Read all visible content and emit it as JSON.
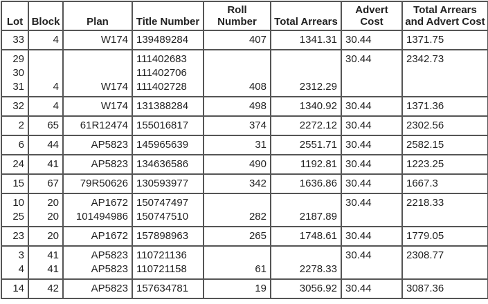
{
  "table": {
    "header": [
      "Lot",
      "Block",
      "Plan",
      "Title Number",
      "Roll Number",
      "Total Arrears",
      "Advert Cost",
      "Total Arrears and Advert Cost"
    ],
    "rows": [
      [
        [
          "33"
        ],
        [
          "4"
        ],
        [
          "W174"
        ],
        [
          "139489284"
        ],
        [
          "407"
        ],
        [
          "1341.31"
        ],
        [
          "30.44"
        ],
        [
          "1371.75"
        ]
      ],
      [
        [
          "29",
          "30",
          "31"
        ],
        [
          "4"
        ],
        [
          "W174"
        ],
        [
          "111402683",
          "111402706",
          "111402728"
        ],
        [
          "408"
        ],
        [
          "2312.29"
        ],
        [
          "30.44"
        ],
        [
          "2342.73"
        ]
      ],
      [
        [
          "32"
        ],
        [
          "4"
        ],
        [
          "W174"
        ],
        [
          "131388284"
        ],
        [
          "498"
        ],
        [
          "1340.92"
        ],
        [
          "30.44"
        ],
        [
          "1371.36"
        ]
      ],
      [
        [
          "2"
        ],
        [
          "65"
        ],
        [
          "61R12474"
        ],
        [
          "155016817"
        ],
        [
          "374"
        ],
        [
          "2272.12"
        ],
        [
          "30.44"
        ],
        [
          "2302.56"
        ]
      ],
      [
        [
          "6"
        ],
        [
          "44"
        ],
        [
          "AP5823"
        ],
        [
          "145965639"
        ],
        [
          "31"
        ],
        [
          "2551.71"
        ],
        [
          "30.44"
        ],
        [
          "2582.15"
        ]
      ],
      [
        [
          "24"
        ],
        [
          "41"
        ],
        [
          "AP5823"
        ],
        [
          "134636586"
        ],
        [
          "490"
        ],
        [
          "1192.81"
        ],
        [
          "30.44"
        ],
        [
          "1223.25"
        ]
      ],
      [
        [
          "15"
        ],
        [
          "67"
        ],
        [
          "79R50626"
        ],
        [
          "130593977"
        ],
        [
          "342"
        ],
        [
          "1636.86"
        ],
        [
          "30.44"
        ],
        [
          "1667.3"
        ]
      ],
      [
        [
          "10",
          "25"
        ],
        [
          "20",
          "20"
        ],
        [
          "AP1672",
          "101494986"
        ],
        [
          "150747497",
          "150747510"
        ],
        [
          "282"
        ],
        [
          "2187.89"
        ],
        [
          "30.44"
        ],
        [
          "2218.33"
        ]
      ],
      [
        [
          "23"
        ],
        [
          "20"
        ],
        [
          "AP1672"
        ],
        [
          "157898963"
        ],
        [
          "265"
        ],
        [
          "1748.61"
        ],
        [
          "30.44"
        ],
        [
          "1779.05"
        ]
      ],
      [
        [
          "3",
          "4"
        ],
        [
          "41",
          "41"
        ],
        [
          "AP5823",
          "AP5823"
        ],
        [
          "110721136",
          "110721158"
        ],
        [
          "61"
        ],
        [
          "2278.33"
        ],
        [
          "30.44"
        ],
        [
          "2308.77"
        ]
      ],
      [
        [
          "14"
        ],
        [
          "42"
        ],
        [
          "AP5823"
        ],
        [
          "157634781"
        ],
        [
          "19"
        ],
        [
          "3056.92"
        ],
        [
          "30.44"
        ],
        [
          "3087.36"
        ]
      ]
    ]
  }
}
